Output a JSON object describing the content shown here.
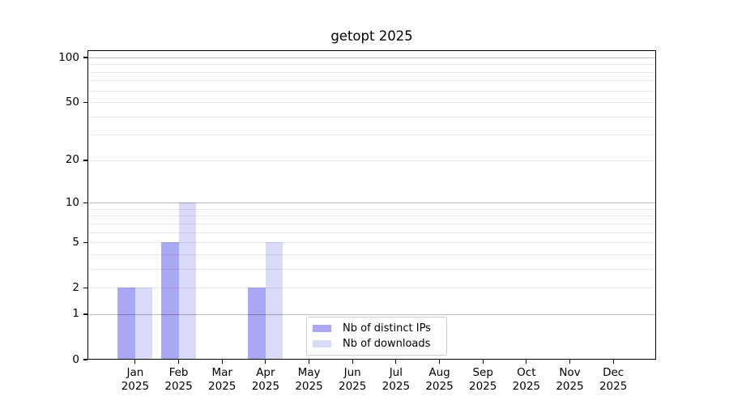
{
  "chart_data": {
    "type": "bar",
    "title": "getopt 2025",
    "categories": [
      "Jan 2025",
      "Feb 2025",
      "Mar 2025",
      "Apr 2025",
      "May 2025",
      "Jun 2025",
      "Jul 2025",
      "Aug 2025",
      "Sep 2025",
      "Oct 2025",
      "Nov 2025",
      "Dec 2025"
    ],
    "series": [
      {
        "name": "Nb of distinct IPs",
        "color": "#a8a8f5",
        "values": [
          2,
          5,
          0,
          2,
          0,
          0,
          0,
          0,
          0,
          0,
          0,
          0
        ]
      },
      {
        "name": "Nb of downloads",
        "color": "#d9d9f8",
        "values": [
          2,
          10,
          0,
          5,
          0,
          0,
          0,
          0,
          0,
          0,
          0,
          0
        ]
      }
    ],
    "ytick_labels": [
      "0",
      "1",
      "2",
      "5",
      "10",
      "20",
      "50",
      "100"
    ],
    "ytick_values": [
      0,
      1,
      2,
      5,
      10,
      20,
      50,
      100
    ],
    "y_scale": "log1p",
    "ylim": [
      0,
      111
    ],
    "grid": true,
    "grid_major_values": [
      1,
      10,
      100
    ],
    "grid_minor_values": [
      2,
      3,
      4,
      5,
      6,
      7,
      8,
      9,
      20,
      30,
      40,
      50,
      60,
      70,
      80,
      90
    ],
    "legend_position": "inside lower-center",
    "xlabel": "",
    "ylabel": ""
  }
}
